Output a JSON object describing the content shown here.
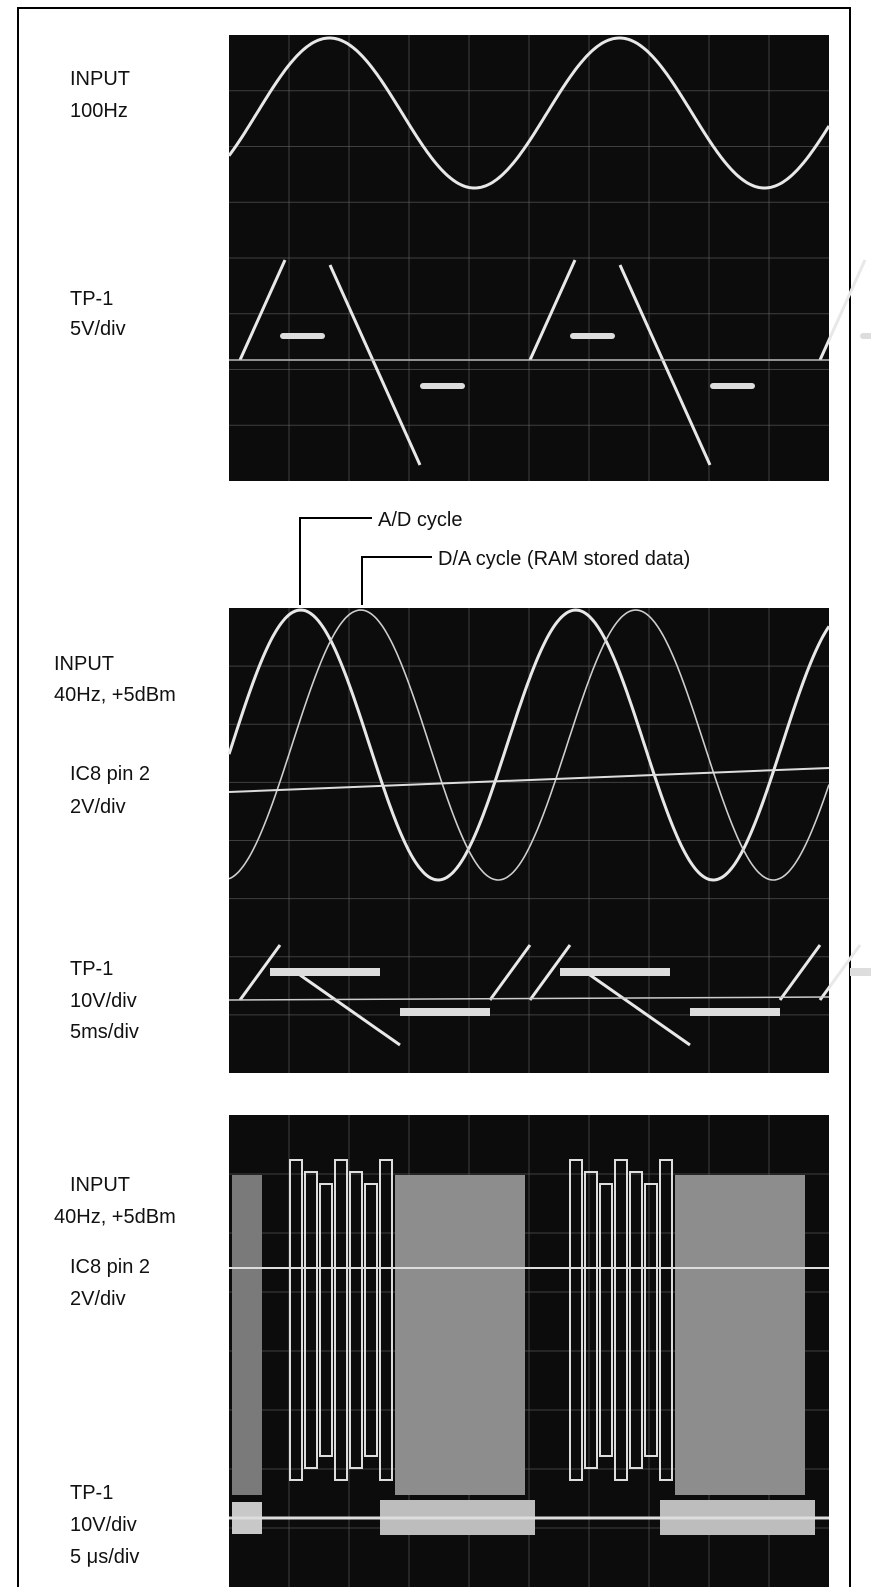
{
  "panels": [
    {
      "labels": [
        "INPUT",
        "100Hz",
        "TP-1",
        "5V/div"
      ]
    },
    {
      "annotations": [
        "A/D cycle",
        "D/A cycle (RAM stored data)"
      ],
      "labels": [
        "INPUT",
        "40Hz, +5dBm",
        "IC8 pin 2",
        "2V/div",
        "TP-1",
        "10V/div",
        "5ms/div"
      ]
    },
    {
      "labels": [
        "INPUT",
        "40Hz, +5dBm",
        "IC8 pin 2",
        "2V/div",
        "TP-1",
        "10V/div",
        "5 μs/div"
      ]
    }
  ]
}
